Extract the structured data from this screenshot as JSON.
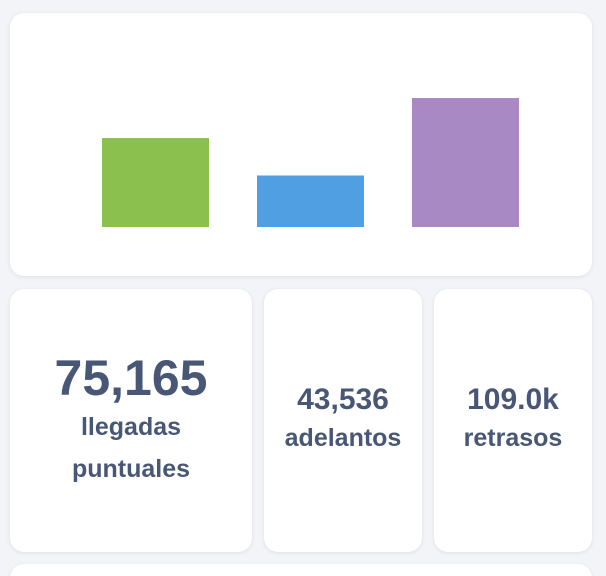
{
  "chart_data": {
    "type": "bar",
    "categories": [
      "llegadas puntuales",
      "adelantos",
      "retrasos"
    ],
    "values": [
      75165,
      43536,
      109000
    ],
    "colors": [
      "#8bc04f",
      "#509fe3",
      "#a889c4"
    ],
    "ylim": [
      0,
      109000
    ],
    "grid": false,
    "legend": "none"
  },
  "stats": [
    {
      "value": "75,165",
      "label": "llegadas puntuales"
    },
    {
      "value": "43,536",
      "label": "adelantos"
    },
    {
      "value": "109.0k",
      "label": "retrasos"
    }
  ]
}
